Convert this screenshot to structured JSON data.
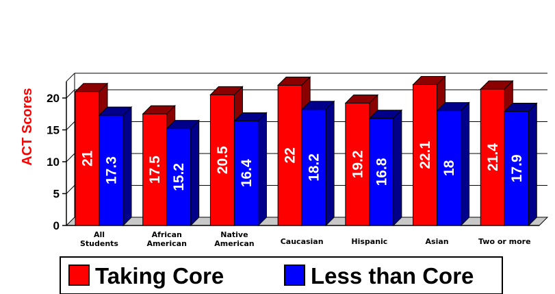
{
  "chart_data": {
    "type": "bar",
    "ylabel": "ACT Scores",
    "xlabel": "",
    "ylim": [
      0,
      22
    ],
    "yticks": [
      0,
      5,
      10,
      15,
      20
    ],
    "categories": [
      [
        "All",
        "Students"
      ],
      [
        "African",
        "American"
      ],
      [
        "Native",
        "American"
      ],
      [
        "Caucasian"
      ],
      [
        "Hispanic"
      ],
      [
        "Asian"
      ],
      [
        "Two or more"
      ]
    ],
    "series": [
      {
        "name": "Taking Core",
        "values": [
          21,
          17.5,
          20.5,
          22,
          19.2,
          22.1,
          21.4
        ],
        "labels": [
          "21",
          "17.5",
          "20.5",
          "22",
          "19.2",
          "22.1",
          "21.4"
        ]
      },
      {
        "name": "Less than Core",
        "values": [
          17.3,
          15.2,
          16.4,
          18.2,
          16.8,
          18,
          17.9
        ],
        "labels": [
          "17.3",
          "15.2",
          "16.4",
          "18.2",
          "16.8",
          "18",
          "17.9"
        ]
      }
    ],
    "colors": {
      "taking_core": "#ff0000",
      "taking_core_side": "#8b0000",
      "less_than_core": "#0000ff",
      "less_than_core_side": "#00008b",
      "ylabel": "#ff0000"
    },
    "legend_position": "bottom",
    "grid": true
  }
}
